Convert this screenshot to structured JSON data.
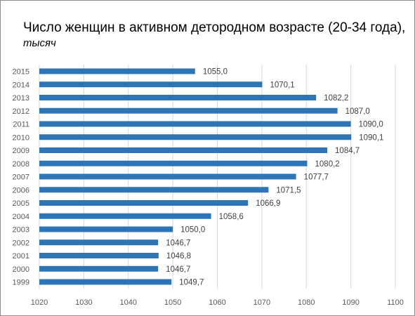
{
  "chart_data": {
    "type": "bar",
    "orientation": "horizontal",
    "title": "Число женщин в активном детородном возрасте (20-34 года),",
    "subtitle": "тысяч",
    "categories": [
      "2015",
      "2014",
      "2013",
      "2012",
      "2011",
      "2010",
      "2009",
      "2008",
      "2007",
      "2006",
      "2005",
      "2004",
      "2003",
      "2002",
      "2001",
      "2000",
      "1999"
    ],
    "values": [
      1055.0,
      1070.1,
      1082.2,
      1087.0,
      1090.0,
      1090.1,
      1084.7,
      1080.2,
      1077.7,
      1071.5,
      1066.9,
      1058.6,
      1050.0,
      1046.7,
      1046.8,
      1046.7,
      1049.7
    ],
    "data_labels": [
      "1055,0",
      "1070,1",
      "1082,2",
      "1087,0",
      "1090,0",
      "1090,1",
      "1084,7",
      "1080,2",
      "1077,7",
      "1071,5",
      "1066,9",
      "1058,6",
      "1050,0",
      "1046,7",
      "1046,8",
      "1046,7",
      "1049,7"
    ],
    "xlim": [
      1020,
      1100
    ],
    "xticks": [
      "1020",
      "1030",
      "1040",
      "1050",
      "1060",
      "1070",
      "1080",
      "1090",
      "1100"
    ],
    "grid": true,
    "bar_color": "#2e75b6",
    "grid_color": "#d9d9d9"
  }
}
